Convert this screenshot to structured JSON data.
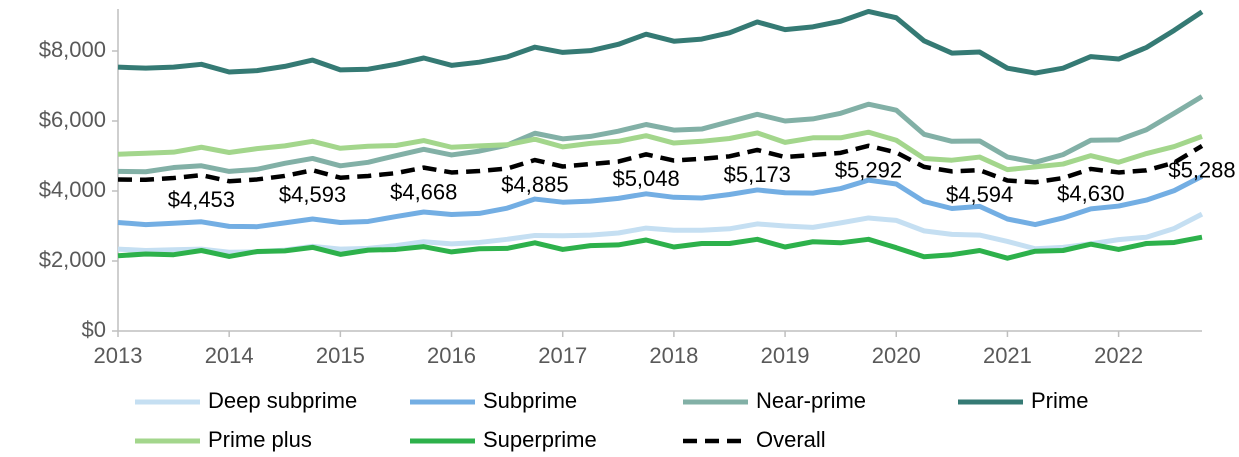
{
  "chart_data": {
    "type": "line",
    "x": [
      2013,
      2013.25,
      2013.5,
      2013.75,
      2014,
      2014.25,
      2014.5,
      2014.75,
      2015,
      2015.25,
      2015.5,
      2015.75,
      2016,
      2016.25,
      2016.5,
      2016.75,
      2017,
      2017.25,
      2017.5,
      2017.75,
      2018,
      2018.25,
      2018.5,
      2018.75,
      2019,
      2019.25,
      2019.5,
      2019.75,
      2020,
      2020.25,
      2020.5,
      2020.75,
      2021,
      2021.25,
      2021.5,
      2021.75,
      2022,
      2022.25,
      2022.5,
      2022.75
    ],
    "series": [
      {
        "name": "Deep subprime",
        "color": "#c5dff2",
        "values": [
          2340,
          2300,
          2320,
          2340,
          2250,
          2260,
          2310,
          2420,
          2340,
          2360,
          2440,
          2550,
          2490,
          2530,
          2620,
          2730,
          2720,
          2740,
          2800,
          2940,
          2880,
          2880,
          2920,
          3060,
          3000,
          2960,
          3090,
          3230,
          3160,
          2860,
          2760,
          2740,
          2560,
          2350,
          2390,
          2490,
          2610,
          2680,
          2930,
          3340
        ]
      },
      {
        "name": "Subprime",
        "color": "#73aee3",
        "values": [
          3100,
          3040,
          3080,
          3120,
          2990,
          2980,
          3090,
          3200,
          3100,
          3130,
          3270,
          3400,
          3330,
          3360,
          3510,
          3770,
          3680,
          3710,
          3790,
          3920,
          3820,
          3800,
          3900,
          4030,
          3950,
          3940,
          4070,
          4310,
          4200,
          3700,
          3500,
          3560,
          3200,
          3040,
          3230,
          3490,
          3570,
          3740,
          4010,
          4420
        ]
      },
      {
        "name": "Near-prime",
        "color": "#82b0a6",
        "values": [
          4560,
          4550,
          4670,
          4720,
          4560,
          4620,
          4790,
          4930,
          4720,
          4820,
          5010,
          5190,
          5030,
          5140,
          5310,
          5650,
          5490,
          5560,
          5710,
          5900,
          5740,
          5770,
          5980,
          6190,
          6000,
          6060,
          6220,
          6480,
          6310,
          5620,
          5420,
          5430,
          4970,
          4820,
          5040,
          5450,
          5460,
          5750,
          6220,
          6700
        ]
      },
      {
        "name": "Prime",
        "color": "#357a74",
        "values": [
          7540,
          7510,
          7540,
          7620,
          7400,
          7440,
          7560,
          7740,
          7460,
          7480,
          7620,
          7800,
          7590,
          7680,
          7830,
          8110,
          7960,
          8010,
          8190,
          8480,
          8280,
          8340,
          8520,
          8830,
          8610,
          8690,
          8850,
          9130,
          8950,
          8290,
          7940,
          7970,
          7510,
          7370,
          7510,
          7840,
          7770,
          8100,
          8590,
          9120
        ]
      },
      {
        "name": "Prime plus",
        "color": "#a3d68c",
        "values": [
          5050,
          5080,
          5110,
          5250,
          5100,
          5210,
          5290,
          5420,
          5220,
          5280,
          5300,
          5440,
          5250,
          5290,
          5320,
          5480,
          5260,
          5360,
          5420,
          5580,
          5370,
          5420,
          5500,
          5660,
          5390,
          5520,
          5520,
          5680,
          5450,
          4930,
          4880,
          4970,
          4610,
          4690,
          4770,
          5010,
          4820,
          5070,
          5270,
          5560
        ]
      },
      {
        "name": "Superprime",
        "color": "#2db14b",
        "values": [
          2150,
          2200,
          2180,
          2300,
          2130,
          2270,
          2290,
          2390,
          2190,
          2310,
          2330,
          2410,
          2260,
          2350,
          2360,
          2520,
          2330,
          2440,
          2460,
          2600,
          2400,
          2500,
          2500,
          2620,
          2400,
          2550,
          2520,
          2620,
          2380,
          2120,
          2180,
          2300,
          2080,
          2280,
          2300,
          2480,
          2330,
          2500,
          2530,
          2680
        ]
      },
      {
        "name": "Overall",
        "color": "#000000",
        "dashed": true,
        "values": [
          4330,
          4320,
          4370,
          4453,
          4280,
          4330,
          4430,
          4593,
          4380,
          4430,
          4510,
          4668,
          4530,
          4570,
          4640,
          4885,
          4700,
          4770,
          4840,
          5048,
          4870,
          4920,
          4990,
          5173,
          4970,
          5030,
          5090,
          5292,
          5100,
          4690,
          4560,
          4594,
          4300,
          4250,
          4370,
          4630,
          4530,
          4590,
          4810,
          5288
        ],
        "value_labels": [
          null,
          null,
          null,
          "$4,453",
          null,
          null,
          null,
          "$4,593",
          null,
          null,
          null,
          "$4,668",
          null,
          null,
          null,
          "$4,885",
          null,
          null,
          null,
          "$5,048",
          null,
          null,
          null,
          "$5,173",
          null,
          null,
          null,
          "$5,292",
          null,
          null,
          null,
          "$4,594",
          null,
          null,
          null,
          "$4,630",
          null,
          null,
          null,
          "$5,288"
        ]
      }
    ],
    "xlim": [
      2013,
      2022.75
    ],
    "xticks": [
      2013,
      2014,
      2015,
      2016,
      2017,
      2018,
      2019,
      2020,
      2021,
      2022
    ],
    "ylim": [
      0,
      9200
    ],
    "yticks": [
      {
        "value": 0,
        "label": "$0"
      },
      {
        "value": 2000,
        "label": "$2,000"
      },
      {
        "value": 4000,
        "label": "$4,000"
      },
      {
        "value": 6000,
        "label": "$6,000"
      },
      {
        "value": 8000,
        "label": "$8,000"
      }
    ],
    "grid": false
  }
}
